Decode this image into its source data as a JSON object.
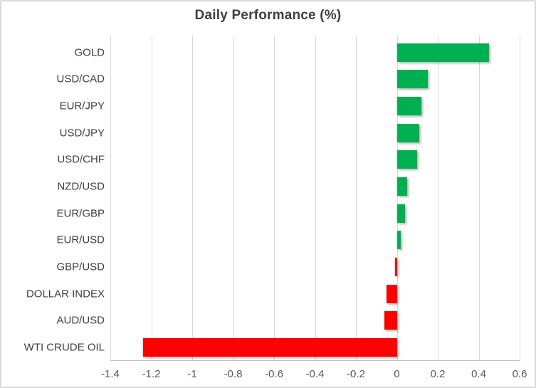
{
  "chart": {
    "title": "Daily Performance (%)"
  },
  "colors": {
    "positive_bar": "#00B050",
    "negative_bar": "#FF0000",
    "gridline": "#D9D9D9",
    "axis_line": "#BFBFBF",
    "title_text": "#3F3F3F",
    "category_text": "#404040",
    "tick_text": "#595959",
    "chart_border": "#D9D9D9"
  },
  "chart_data": {
    "type": "bar",
    "orientation": "horizontal",
    "title": "Daily Performance (%)",
    "categories": [
      "GOLD",
      "USD/CAD",
      "EUR/JPY",
      "USD/JPY",
      "USD/CHF",
      "NZD/USD",
      "EUR/GBP",
      "EUR/USD",
      "GBP/USD",
      "DOLLAR INDEX",
      "AUD/USD",
      "WTI CRUDE OIL"
    ],
    "values": [
      0.45,
      0.15,
      0.12,
      0.11,
      0.1,
      0.05,
      0.04,
      0.02,
      -0.01,
      -0.05,
      -0.06,
      -1.24
    ],
    "xlabel": "",
    "ylabel": "",
    "xlim": [
      -1.4,
      0.6
    ],
    "xticks": [
      -1.4,
      -1.2,
      -1,
      -0.8,
      -0.6,
      -0.4,
      -0.2,
      0,
      0.2,
      0.4,
      0.6
    ],
    "xtick_labels": [
      "-1.4",
      "-1.2",
      "-1",
      "-0.8",
      "-0.6",
      "-0.4",
      "-0.2",
      "0",
      "0.2",
      "0.4",
      "0.6"
    ],
    "grid": true,
    "legend": false
  }
}
